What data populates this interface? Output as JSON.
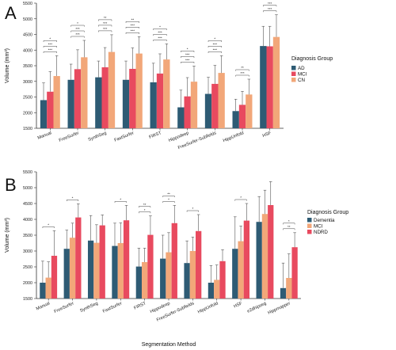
{
  "chart_data": [
    {
      "panel_label": "A",
      "type": "bar",
      "ylabel": "Volume (mm³)",
      "ylim": [
        1500,
        5500
      ],
      "yticks": [
        1500,
        2000,
        2500,
        3000,
        3500,
        4000,
        4500,
        5000,
        5500
      ],
      "categories": [
        "Manual",
        "FreeSurfer",
        "SynthSeg",
        "FastSurfer",
        "FIRST",
        "Hippodeep",
        "FreeSurfer-Subfields",
        "HippUnfold",
        "HSF"
      ],
      "legend": {
        "title": "Diagnosis Group",
        "position": "right"
      },
      "series": [
        {
          "name": "AD",
          "color": "#2e5b74",
          "values": [
            2400,
            3050,
            3130,
            3050,
            2970,
            2170,
            2600,
            2050,
            4130
          ],
          "error_upper": [
            2950,
            3550,
            3650,
            3650,
            3580,
            2720,
            3130,
            2430,
            4760
          ]
        },
        {
          "name": "MCI",
          "color": "#e84a5f",
          "values": [
            2670,
            3390,
            3450,
            3400,
            3250,
            2520,
            2920,
            2250,
            4120
          ],
          "error_upper": [
            3310,
            4010,
            4080,
            4070,
            3880,
            3120,
            3510,
            2680,
            4760
          ]
        },
        {
          "name": "CN",
          "color": "#f2a779",
          "values": [
            3170,
            3770,
            3940,
            3890,
            3700,
            2990,
            3270,
            2580,
            4420
          ],
          "error_upper": [
            3820,
            4310,
            4490,
            4430,
            4200,
            3490,
            3820,
            3070,
            5130
          ]
        }
      ],
      "significance": {
        "Manual": [
          "*",
          "***",
          "***"
        ],
        "FreeSurfer": [
          "*",
          "***",
          "***"
        ],
        "SynthSeg": [
          "**",
          "***",
          "***"
        ],
        "FastSurfer": [
          "**",
          "***",
          "***"
        ],
        "FIRST": [
          "*",
          "***",
          "***"
        ],
        "Hippodeep": [
          "*",
          "***",
          "***"
        ],
        "FreeSurfer-Subfields": [
          "*",
          "***",
          "***"
        ],
        "HippUnfold": [
          "**",
          "***"
        ],
        "HSF": [
          "***",
          "***"
        ]
      }
    },
    {
      "panel_label": "B",
      "type": "bar",
      "xlabel": "Segmentation Method",
      "ylabel": "Volume (mm³)",
      "ylim": [
        1500,
        5500
      ],
      "yticks": [
        1500,
        2000,
        2500,
        3000,
        3500,
        4000,
        4500,
        5000,
        5500
      ],
      "categories": [
        "Manual",
        "FreeSurfer",
        "SynthSeg",
        "FastSurfer",
        "FIRST",
        "Hippodeep",
        "FreeSurfer-Subfields",
        "HippUnfold",
        "HSF",
        "e2dhipseg",
        "Hippmapper"
      ],
      "legend": {
        "title": "Diagnosis Group",
        "position": "right"
      },
      "series": [
        {
          "name": "Dementia",
          "color": "#2e5b74",
          "values": [
            2000,
            3070,
            3330,
            3160,
            2510,
            2760,
            2620,
            2000,
            3070,
            3920,
            1830
          ],
          "error_upper": [
            2680,
            3660,
            4120,
            3880,
            3090,
            3500,
            3320,
            2540,
            4080,
            4720,
            2620
          ]
        },
        {
          "name": "MCI",
          "color": "#f2a779",
          "values": [
            2160,
            3420,
            3260,
            3250,
            2650,
            2960,
            3000,
            2090,
            3310,
            4170,
            2150
          ],
          "error_upper": [
            2660,
            3880,
            3830,
            3890,
            3090,
            3580,
            3440,
            2560,
            3790,
            4920,
            2910
          ]
        },
        {
          "name": "NDRD",
          "color": "#e84a5f",
          "values": [
            2850,
            4060,
            3810,
            3970,
            3510,
            3880,
            3630,
            2680,
            3960,
            4450,
            3120
          ],
          "error_upper": [
            3640,
            4490,
            4140,
            4440,
            4110,
            4440,
            4150,
            3040,
            4500,
            5190,
            3580
          ]
        }
      ],
      "significance": {
        "Manual": [
          "*"
        ],
        "FreeSurfer": [
          "*"
        ],
        "FastSurfer": [
          "*"
        ],
        "FIRST": [
          "**",
          "*"
        ],
        "Hippodeep": [
          "**",
          "*"
        ],
        "FreeSurfer-Subfields": [
          "*"
        ],
        "HSF": [
          "*"
        ],
        "Hippmapper": [
          "*",
          "**"
        ]
      }
    }
  ]
}
